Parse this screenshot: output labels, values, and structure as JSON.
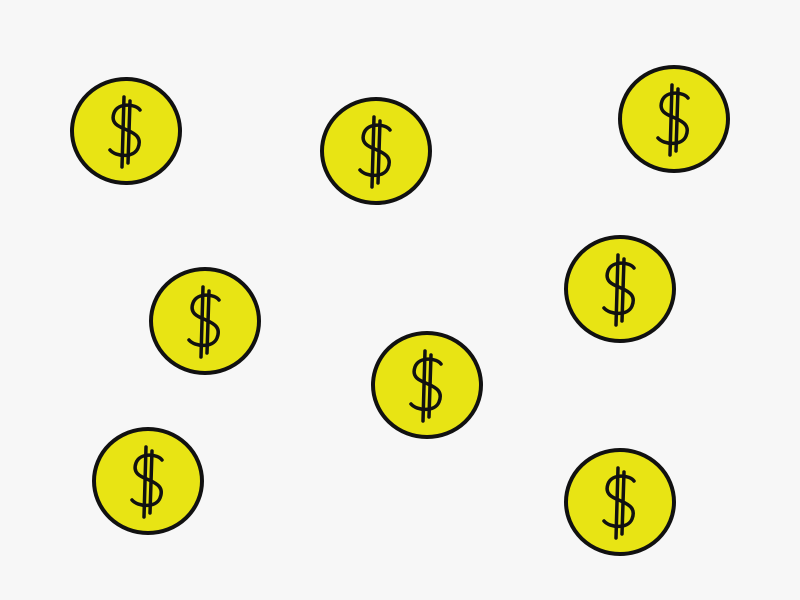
{
  "colors": {
    "background": "#f7f7f7",
    "coin_fill": "#e8e414",
    "coin_outline": "#111111"
  },
  "coins": [
    {
      "icon": "dollar-coin-icon"
    },
    {
      "icon": "dollar-coin-icon"
    },
    {
      "icon": "dollar-coin-icon"
    },
    {
      "icon": "dollar-coin-icon"
    },
    {
      "icon": "dollar-coin-icon"
    },
    {
      "icon": "dollar-coin-icon"
    },
    {
      "icon": "dollar-coin-icon"
    },
    {
      "icon": "dollar-coin-icon"
    }
  ]
}
